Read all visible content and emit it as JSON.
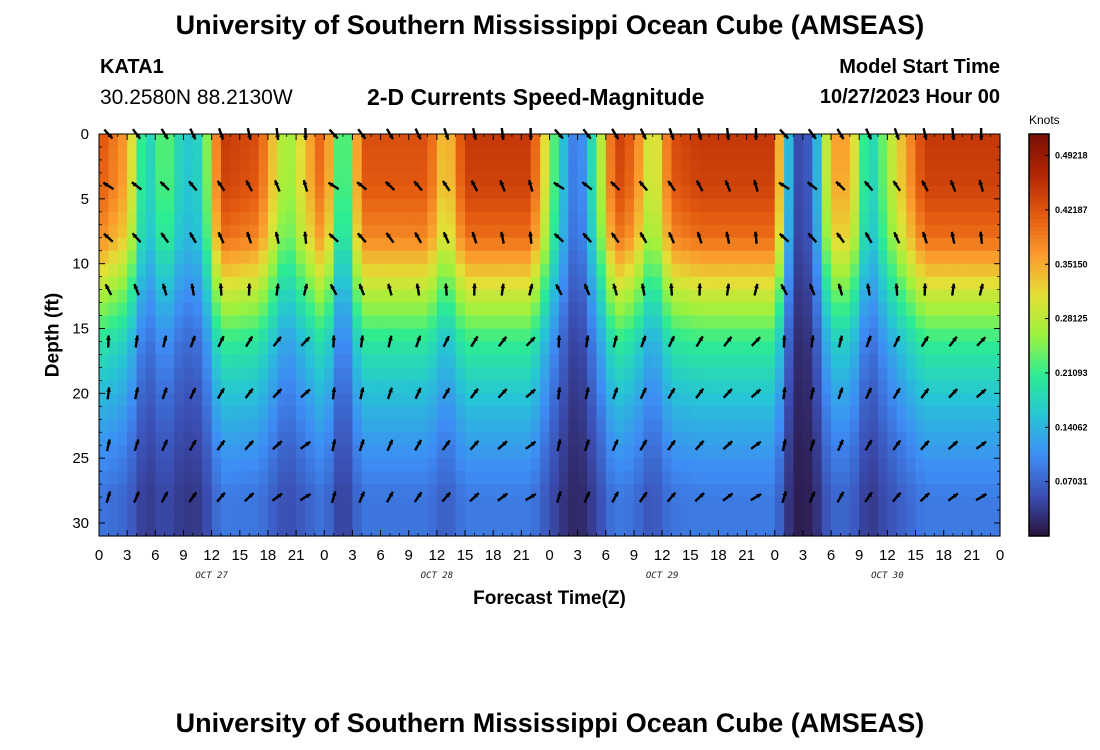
{
  "header": {
    "title": "University of Southern Mississippi Ocean Cube (AMSEAS)",
    "station": "KATA1",
    "coords": "30.2580N  88.2130W",
    "subtitle": "2-D Currents Speed-Magnitude",
    "model_start_label": "Model Start Time",
    "model_start_value": "10/27/2023 Hour 00"
  },
  "footer": {
    "title": "University of Southern Mississippi Ocean Cube (AMSEAS)"
  },
  "chart_data": {
    "type": "heatmap",
    "title": "2-D Currents Speed-Magnitude",
    "xlabel": "Forecast Time(Z)",
    "ylabel": "Depth (ft)",
    "x_hours": [
      0,
      96
    ],
    "x_tick_labels": [
      "0",
      "3",
      "6",
      "9",
      "12",
      "15",
      "18",
      "21",
      "0",
      "3",
      "6",
      "9",
      "12",
      "15",
      "18",
      "21",
      "0",
      "3",
      "6",
      "9",
      "12",
      "15",
      "18",
      "21",
      "0",
      "3",
      "6",
      "9",
      "12",
      "15",
      "18",
      "21",
      "0"
    ],
    "date_labels": [
      {
        "text": "OCT 27",
        "hour": 12
      },
      {
        "text": "OCT 28",
        "hour": 36
      },
      {
        "text": "OCT 29",
        "hour": 60
      },
      {
        "text": "OCT 30",
        "hour": 84
      }
    ],
    "ylim": [
      0,
      31
    ],
    "y_ticks": [
      0,
      5,
      10,
      15,
      20,
      25,
      30
    ],
    "colorbar": {
      "unit": "Knots",
      "range": [
        0,
        0.52
      ],
      "ticks": [
        0.07031,
        0.14062,
        0.21093,
        0.28125,
        0.3515,
        0.42187,
        0.49218
      ],
      "tick_labels": [
        "0.07031",
        "0.14062",
        "0.21093",
        "0.28125",
        "0.35150",
        "0.42187",
        "0.49218"
      ],
      "colors": [
        "#2a123a",
        "#3b4eb3",
        "#3e8cf5",
        "#27c4d5",
        "#2cec93",
        "#9bf23e",
        "#e3e036",
        "#fb9b2c",
        "#e45a10",
        "#b42605",
        "#7a0e03"
      ]
    },
    "depth_profile": [
      {
        "depth_ft": 0,
        "speed_knots": 0.45,
        "direction_deg": 135
      },
      {
        "depth_ft": 4,
        "speed_knots": 0.44,
        "direction_deg": 300
      },
      {
        "depth_ft": 8,
        "speed_knots": 0.4,
        "direction_deg": 310
      },
      {
        "depth_ft": 12,
        "speed_knots": 0.3,
        "direction_deg": 330
      },
      {
        "depth_ft": 16,
        "speed_knots": 0.21,
        "direction_deg": 0
      },
      {
        "depth_ft": 20,
        "speed_knots": 0.16,
        "direction_deg": 5
      },
      {
        "depth_ft": 24,
        "speed_knots": 0.12,
        "direction_deg": 10
      },
      {
        "depth_ft": 28,
        "speed_knots": 0.09,
        "direction_deg": 15
      }
    ],
    "time_scaling": [
      {
        "hour": 0,
        "factor": 0.95
      },
      {
        "hour": 3,
        "factor": 0.8
      },
      {
        "hour": 5,
        "factor": 0.35
      },
      {
        "hour": 7,
        "factor": 0.55
      },
      {
        "hour": 9,
        "factor": 0.35
      },
      {
        "hour": 11,
        "factor": 0.4
      },
      {
        "hour": 13,
        "factor": 1.0
      },
      {
        "hour": 17,
        "factor": 0.95
      },
      {
        "hour": 20,
        "factor": 0.55
      },
      {
        "hour": 24,
        "factor": 0.95
      },
      {
        "hour": 26,
        "factor": 0.35
      },
      {
        "hour": 28,
        "factor": 0.95
      },
      {
        "hour": 35,
        "factor": 0.95
      },
      {
        "hour": 37,
        "factor": 0.7
      },
      {
        "hour": 39,
        "factor": 1.0
      },
      {
        "hour": 46,
        "factor": 1.0
      },
      {
        "hour": 49,
        "factor": 0.4
      },
      {
        "hour": 51,
        "factor": 0.15
      },
      {
        "hour": 53,
        "factor": 0.5
      },
      {
        "hour": 55,
        "factor": 1.0
      },
      {
        "hour": 57,
        "factor": 0.9
      },
      {
        "hour": 59,
        "factor": 0.6
      },
      {
        "hour": 61,
        "factor": 0.95
      },
      {
        "hour": 64,
        "factor": 1.0
      },
      {
        "hour": 72,
        "factor": 1.0
      },
      {
        "hour": 74,
        "factor": 0.1
      },
      {
        "hour": 76,
        "factor": 0.15
      },
      {
        "hour": 78,
        "factor": 0.8
      },
      {
        "hour": 80,
        "factor": 0.8
      },
      {
        "hour": 82,
        "factor": 0.35
      },
      {
        "hour": 85,
        "factor": 0.7
      },
      {
        "hour": 88,
        "factor": 1.0
      },
      {
        "hour": 96,
        "factor": 1.0
      }
    ]
  }
}
